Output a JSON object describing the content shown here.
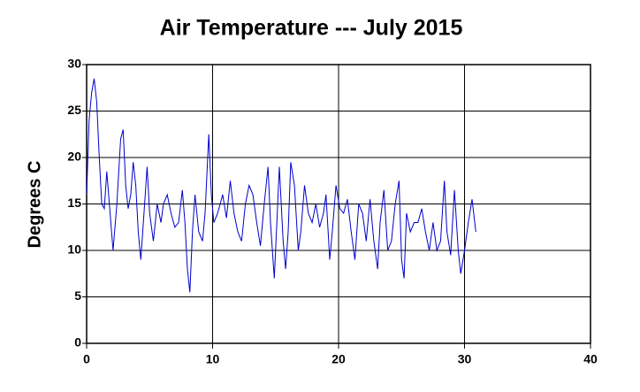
{
  "chart_data": {
    "type": "line",
    "title": "Air Temperature --- July 2015",
    "y_label": "Degrees C",
    "x": [
      0,
      0.2,
      0.4,
      0.6,
      0.8,
      1.0,
      1.2,
      1.4,
      1.6,
      1.8,
      2.1,
      2.4,
      2.7,
      2.9,
      3.1,
      3.3,
      3.5,
      3.7,
      3.9,
      4.1,
      4.3,
      4.6,
      4.8,
      5.0,
      5.3,
      5.6,
      5.9,
      6.1,
      6.4,
      6.7,
      7.0,
      7.3,
      7.6,
      7.8,
      8.0,
      8.2,
      8.4,
      8.6,
      8.9,
      9.2,
      9.4,
      9.7,
      9.9,
      10.1,
      10.4,
      10.8,
      11.1,
      11.4,
      11.7,
      12.0,
      12.3,
      12.6,
      12.9,
      13.2,
      13.5,
      13.8,
      14.1,
      14.4,
      14.6,
      14.9,
      15.1,
      15.3,
      15.6,
      15.8,
      16.0,
      16.2,
      16.5,
      16.8,
      17.0,
      17.3,
      17.6,
      17.9,
      18.2,
      18.5,
      18.8,
      19.0,
      19.3,
      19.5,
      19.8,
      20.1,
      20.4,
      20.7,
      21.0,
      21.3,
      21.6,
      21.9,
      22.2,
      22.5,
      22.8,
      23.1,
      23.3,
      23.6,
      23.9,
      24.2,
      24.5,
      24.8,
      25.0,
      25.2,
      25.4,
      25.7,
      26.0,
      26.3,
      26.6,
      26.9,
      27.2,
      27.5,
      27.8,
      28.1,
      28.4,
      28.6,
      28.9,
      29.2,
      29.5,
      29.7,
      30.0,
      30.3,
      30.6,
      30.9
    ],
    "series": [
      {
        "name": "Air Temperature",
        "color": "#0000cc",
        "values": [
          16,
          24,
          27,
          28.5,
          26,
          20,
          15,
          14.5,
          18.5,
          15,
          10,
          15,
          22,
          23,
          17,
          14.5,
          16,
          19.5,
          17,
          12,
          9,
          15,
          19,
          14,
          11,
          15,
          13,
          15,
          16,
          14,
          12.5,
          13,
          16.5,
          13,
          8,
          5.5,
          12,
          16,
          12,
          11,
          14,
          22.5,
          16,
          13,
          14,
          16,
          13.5,
          17.5,
          14,
          12,
          11,
          15,
          17,
          16,
          13,
          10.5,
          15,
          19,
          13,
          7,
          13,
          19,
          11,
          8,
          12,
          19.5,
          17,
          10,
          12,
          17,
          14,
          13,
          15,
          12.5,
          14,
          16,
          9,
          12,
          17,
          14.5,
          14,
          15.5,
          12,
          9,
          15,
          14,
          11,
          15.5,
          11,
          8,
          13,
          16.5,
          10,
          11,
          15,
          17.5,
          9,
          7,
          14,
          12,
          13,
          13,
          14.5,
          12,
          10,
          13,
          10,
          11,
          17.5,
          12,
          9.5,
          16.5,
          10,
          7.5,
          10,
          13,
          15.5,
          12
        ]
      }
    ],
    "xlim": [
      0,
      40
    ],
    "ylim": [
      0,
      30
    ],
    "xticks": [
      0,
      10,
      20,
      30,
      40
    ],
    "yticks": [
      0,
      5,
      10,
      15,
      20,
      25,
      30
    ],
    "grid": true
  }
}
